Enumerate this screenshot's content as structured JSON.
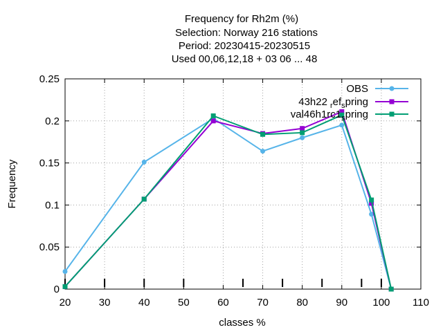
{
  "chart_data": {
    "type": "line",
    "title_lines": [
      "Frequency  for Rh2m (%)",
      "Selection: Norway    216 stations",
      "Period: 20230415-20230515",
      "Used  00,06,12,18  + 03 06 ... 48"
    ],
    "xlabel": "classes %",
    "ylabel": "Frequency",
    "xlim": [
      20,
      110
    ],
    "ylim": [
      0,
      0.25
    ],
    "xticks": [
      20,
      30,
      40,
      50,
      60,
      70,
      80,
      90,
      100,
      110
    ],
    "yticks": [
      0,
      0.05,
      0.1,
      0.15,
      0.2,
      0.25
    ],
    "xtick_labels": [
      "20",
      "30",
      "40",
      "50",
      "60",
      "70",
      "80",
      "90",
      "100",
      "110"
    ],
    "ytick_labels": [
      "0",
      "0.05",
      "0.1",
      "0.15",
      "0.2",
      "0.25"
    ],
    "class_marks": [
      20,
      30,
      40,
      50,
      65,
      75,
      85,
      95,
      100
    ],
    "grid": true,
    "legend_position": "top-right",
    "x": [
      20,
      40,
      57.5,
      70,
      80,
      90,
      97.5,
      102.5
    ],
    "series": [
      {
        "name": "OBS",
        "color": "#56b4e9",
        "marker": "circle",
        "values": [
          0.021,
          0.151,
          0.203,
          0.164,
          0.18,
          0.195,
          0.089,
          0.0
        ]
      },
      {
        "name_parts": [
          "43h22",
          "r",
          "ef",
          "s",
          "pring"
        ],
        "color": "#9400d3",
        "marker": "square",
        "values": [
          0.003,
          0.107,
          0.2,
          0.185,
          0.191,
          0.211,
          0.102,
          0.0
        ]
      },
      {
        "name_parts": [
          "val46h1rc1",
          "s",
          "pring"
        ],
        "color": "#009e73",
        "marker": "square",
        "values": [
          0.003,
          0.107,
          0.206,
          0.184,
          0.186,
          0.207,
          0.106,
          0.0
        ]
      }
    ]
  }
}
